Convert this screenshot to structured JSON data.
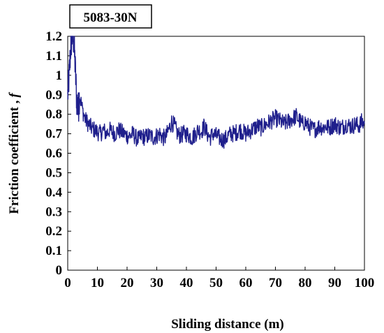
{
  "chart_data": {
    "type": "line",
    "title": "5083-30N",
    "xlabel": "Sliding distance (m)",
    "ylabel_prefix": "Friction coefficient ,",
    "ylabel_symbol": "f",
    "xlim": [
      0,
      100
    ],
    "ylim": [
      0,
      1.2
    ],
    "x_ticks": [
      "0",
      "10",
      "20",
      "30",
      "40",
      "50",
      "60",
      "70",
      "80",
      "90",
      "100"
    ],
    "y_ticks": [
      "0",
      "0.1",
      "0.2",
      "0.3",
      "0.4",
      "0.5",
      "0.6",
      "0.7",
      "0.8",
      "0.9",
      "1",
      "1.1",
      "1.2"
    ],
    "grid": false,
    "legend": "none",
    "line_color": "#1f1f8c",
    "series": [
      {
        "x": [
          0,
          0.5,
          1,
          1.5,
          2,
          2.5,
          3,
          3.5,
          4,
          5,
          6,
          7,
          8,
          9,
          10,
          11,
          12,
          13,
          14,
          15,
          16,
          17,
          18,
          19,
          20,
          21,
          22,
          23,
          24,
          25,
          26,
          27,
          28,
          29,
          30,
          31,
          32,
          33,
          34,
          35,
          36,
          37,
          38,
          39,
          40,
          41,
          42,
          43,
          44,
          45,
          46,
          47,
          48,
          49,
          50,
          51,
          52,
          53,
          54,
          55,
          56,
          57,
          58,
          59,
          60,
          61,
          62,
          63,
          64,
          65,
          66,
          67,
          68,
          69,
          70,
          71,
          72,
          73,
          74,
          75,
          76,
          77,
          78,
          79,
          80,
          81,
          82,
          83,
          84,
          85,
          86,
          87,
          88,
          89,
          90,
          91,
          92,
          93,
          94,
          95,
          96,
          97,
          98,
          99,
          100
        ],
        "values": [
          0.9,
          1.0,
          1.15,
          1.2,
          1.18,
          1.05,
          0.88,
          0.82,
          0.9,
          0.82,
          0.77,
          0.75,
          0.73,
          0.72,
          0.71,
          0.7,
          0.72,
          0.7,
          0.72,
          0.71,
          0.7,
          0.72,
          0.71,
          0.7,
          0.69,
          0.69,
          0.7,
          0.68,
          0.67,
          0.69,
          0.68,
          0.69,
          0.69,
          0.68,
          0.69,
          0.7,
          0.68,
          0.68,
          0.72,
          0.76,
          0.74,
          0.7,
          0.69,
          0.7,
          0.7,
          0.69,
          0.68,
          0.7,
          0.72,
          0.71,
          0.74,
          0.7,
          0.68,
          0.7,
          0.69,
          0.68,
          0.67,
          0.67,
          0.69,
          0.7,
          0.7,
          0.71,
          0.72,
          0.71,
          0.7,
          0.71,
          0.72,
          0.73,
          0.74,
          0.73,
          0.74,
          0.75,
          0.76,
          0.77,
          0.78,
          0.77,
          0.76,
          0.75,
          0.76,
          0.77,
          0.78,
          0.79,
          0.77,
          0.75,
          0.76,
          0.74,
          0.73,
          0.72,
          0.73,
          0.74,
          0.73,
          0.74,
          0.73,
          0.74,
          0.75,
          0.74,
          0.73,
          0.74,
          0.75,
          0.74,
          0.74,
          0.75,
          0.74,
          0.76,
          0.75
        ]
      }
    ]
  }
}
